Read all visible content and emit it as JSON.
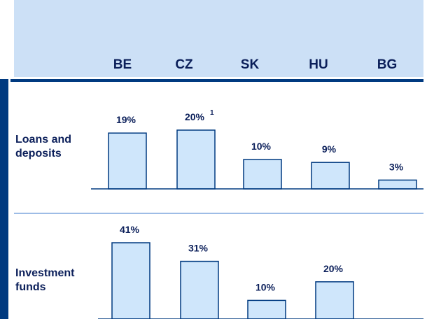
{
  "chart_data": {
    "type": "bar",
    "categories": [
      "BE",
      "CZ",
      "SK",
      "HU",
      "BG"
    ],
    "color": "#cfe6fb",
    "series": [
      {
        "name": "Loans and deposits",
        "values": [
          19,
          20,
          10,
          9,
          3
        ],
        "value_labels": [
          "19%",
          "20%",
          "10%",
          "9%",
          "3%"
        ],
        "footnotes": [
          null,
          "1",
          null,
          null,
          null
        ]
      },
      {
        "name": "Investment funds",
        "values": [
          41,
          31,
          10,
          20,
          null
        ],
        "value_labels": [
          "41%",
          "31%",
          "10%",
          "20%",
          null
        ]
      }
    ]
  }
}
